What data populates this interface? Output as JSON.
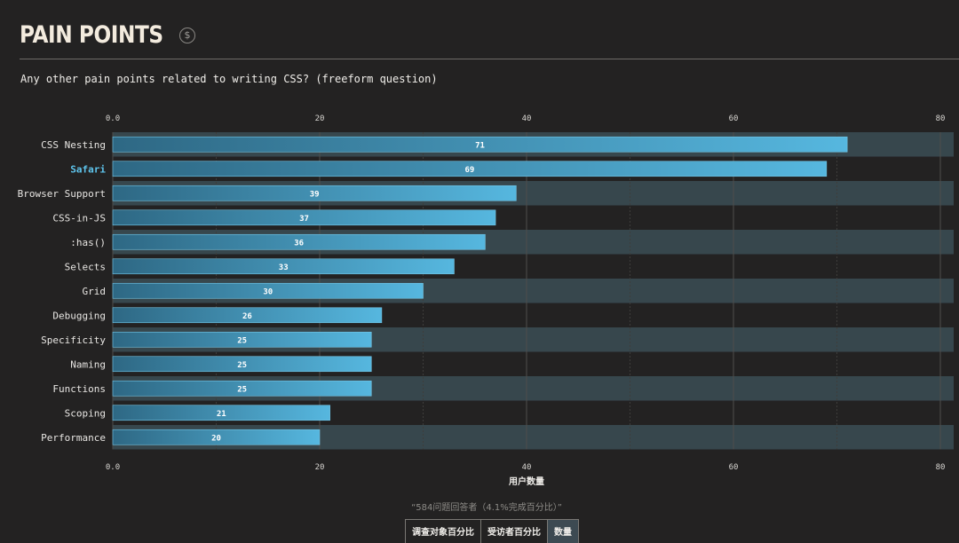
{
  "header": {
    "title": "PAIN POINTS",
    "info_icon": "dollar-circle-icon"
  },
  "question": "Any other pain points related to writing CSS? (freeform question)",
  "chart_data": {
    "type": "bar",
    "orientation": "horizontal",
    "categories": [
      "CSS Nesting",
      "Safari",
      "Browser Support",
      "CSS-in-JS",
      ":has()",
      "Selects",
      "Grid",
      "Debugging",
      "Specificity",
      "Naming",
      "Functions",
      "Scoping",
      "Performance"
    ],
    "values": [
      71,
      69,
      39,
      37,
      36,
      33,
      30,
      26,
      25,
      25,
      25,
      21,
      20
    ],
    "highlighted_category": "Safari",
    "x_ticks": [
      "0.0",
      "20",
      "40",
      "60",
      "80"
    ],
    "xlim": [
      0,
      80
    ],
    "xlabel": "用户数量",
    "grid": true,
    "colors": {
      "bar_start": "#2e6884",
      "bar_end": "#56b7df",
      "band": "#37474d",
      "highlight_label": "#5ec4ec"
    }
  },
  "respondents_note": "“584问题回答者（4.1%完成百分比）”",
  "units": {
    "options": [
      "调查对象百分比",
      "受访者百分比",
      "数量"
    ],
    "active": "数量"
  }
}
